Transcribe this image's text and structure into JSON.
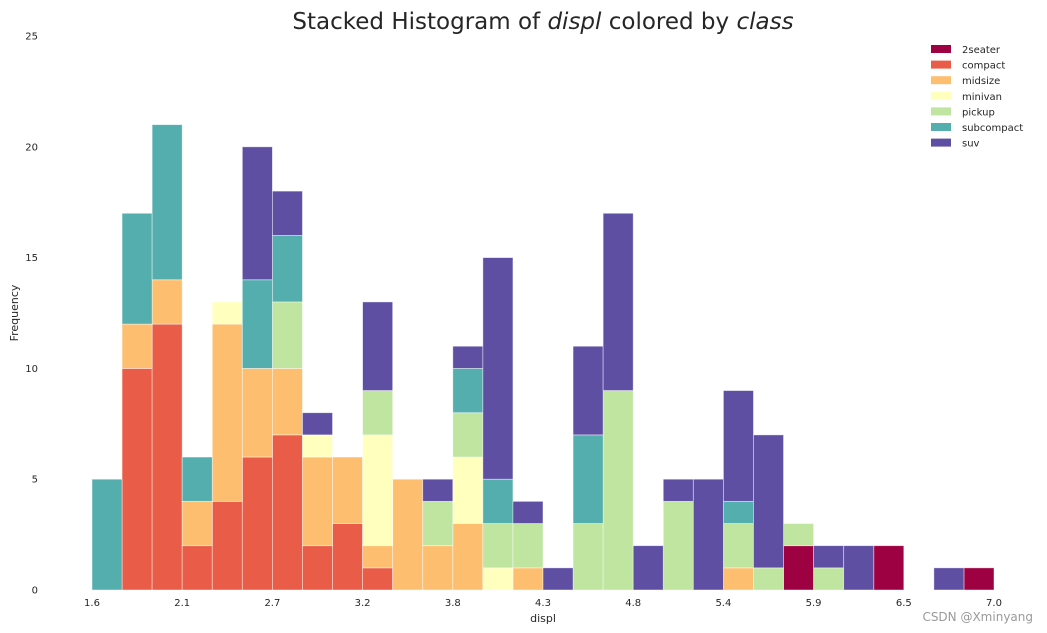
{
  "chart_data": {
    "type": "bar",
    "title_parts": [
      {
        "text": "Stacked Histogram of ",
        "italic": false
      },
      {
        "text": "displ",
        "italic": true
      },
      {
        "text": " colored by ",
        "italic": false
      },
      {
        "text": "class",
        "italic": true
      }
    ],
    "xlabel": "displ",
    "ylabel": "Frequency",
    "xlim": [
      1.6,
      7.0
    ],
    "ylim": [
      0,
      25
    ],
    "xticks": [
      "1.6",
      "2.1",
      "2.7",
      "3.2",
      "3.8",
      "4.3",
      "4.8",
      "5.4",
      "5.9",
      "6.5",
      "7.0"
    ],
    "yticks": [
      "0",
      "5",
      "10",
      "15",
      "20",
      "25"
    ],
    "bins": 30,
    "grid": false,
    "legend_position": "top-right",
    "series": [
      {
        "name": "2seater",
        "color": "#9e0142",
        "values": [
          0,
          0,
          0,
          0,
          0,
          0,
          0,
          0,
          0,
          0,
          0,
          0,
          0,
          0,
          0,
          0,
          0,
          0,
          0,
          0,
          0,
          0,
          0,
          2,
          0,
          0,
          2,
          0,
          0,
          1
        ]
      },
      {
        "name": "compact",
        "color": "#e95c47",
        "values": [
          0,
          10,
          12,
          2,
          4,
          6,
          7,
          2,
          3,
          1,
          0,
          0,
          0,
          0,
          0,
          0,
          0,
          0,
          0,
          0,
          0,
          0,
          0,
          0,
          0,
          0,
          0,
          0,
          0,
          0
        ]
      },
      {
        "name": "midsize",
        "color": "#fdbf6f",
        "values": [
          0,
          2,
          2,
          2,
          8,
          4,
          3,
          4,
          3,
          1,
          5,
          2,
          3,
          0,
          1,
          0,
          0,
          0,
          0,
          0,
          0,
          1,
          0,
          0,
          0,
          0,
          0,
          0,
          0,
          0
        ]
      },
      {
        "name": "minivan",
        "color": "#ffffbe",
        "values": [
          0,
          0,
          0,
          0,
          1,
          0,
          0,
          1,
          0,
          5,
          0,
          0,
          3,
          1,
          0,
          0,
          0,
          0,
          0,
          0,
          0,
          0,
          0,
          0,
          0,
          0,
          0,
          0,
          0,
          0
        ]
      },
      {
        "name": "pickup",
        "color": "#bfe5a0",
        "values": [
          0,
          0,
          0,
          0,
          0,
          0,
          3,
          0,
          0,
          2,
          0,
          2,
          2,
          2,
          2,
          0,
          3,
          9,
          0,
          4,
          0,
          2,
          1,
          1,
          1,
          0,
          0,
          0,
          0,
          0
        ]
      },
      {
        "name": "subcompact",
        "color": "#54aead",
        "values": [
          5,
          5,
          7,
          2,
          0,
          4,
          3,
          0,
          0,
          0,
          0,
          0,
          2,
          2,
          0,
          0,
          4,
          0,
          0,
          0,
          0,
          1,
          0,
          0,
          0,
          0,
          0,
          0,
          0,
          0
        ]
      },
      {
        "name": "suv",
        "color": "#5e4fa2",
        "values": [
          0,
          0,
          0,
          0,
          0,
          6,
          2,
          1,
          0,
          4,
          0,
          1,
          1,
          10,
          1,
          1,
          4,
          8,
          2,
          1,
          5,
          5,
          6,
          0,
          1,
          2,
          0,
          0,
          1,
          0
        ]
      }
    ]
  },
  "watermark": "CSDN @Xminyang"
}
